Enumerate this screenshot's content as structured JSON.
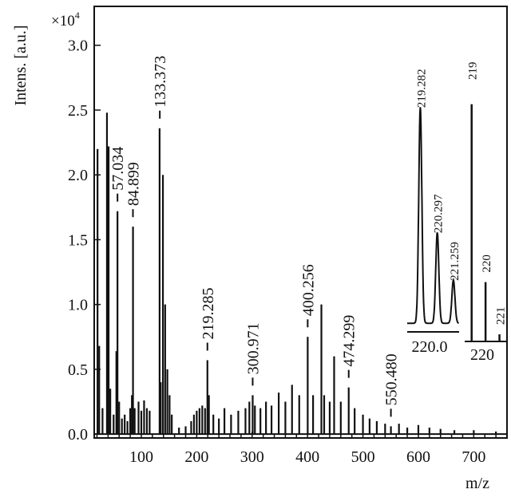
{
  "chart_data": [
    {
      "type": "line",
      "title": "",
      "xlabel": "m/z",
      "ylabel": "Intens. [a.u.]",
      "y_multiplier": "×10",
      "y_multiplier_exp": "4",
      "xlim": [
        15,
        760
      ],
      "ylim": [
        -0.03,
        3.3
      ],
      "x_ticks": [
        100,
        200,
        300,
        400,
        500,
        600,
        700
      ],
      "y_ticks": [
        0.0,
        0.5,
        1.0,
        1.5,
        2.0,
        2.5,
        3.0
      ],
      "y_tick_labels": [
        "0.0",
        "0.5",
        "1.0",
        "1.5",
        "2.0",
        "2.5",
        "3.0"
      ],
      "grid": false,
      "peaks": [
        {
          "x": 21,
          "y": 2.2
        },
        {
          "x": 24,
          "y": 0.68
        },
        {
          "x": 30,
          "y": 0.2
        },
        {
          "x": 38,
          "y": 2.48
        },
        {
          "x": 41,
          "y": 2.22
        },
        {
          "x": 44,
          "y": 0.35
        },
        {
          "x": 50,
          "y": 0.15
        },
        {
          "x": 55,
          "y": 0.64
        },
        {
          "x": 57,
          "y": 1.72
        },
        {
          "x": 60,
          "y": 0.25
        },
        {
          "x": 65,
          "y": 0.12
        },
        {
          "x": 70,
          "y": 0.15
        },
        {
          "x": 75,
          "y": 0.1
        },
        {
          "x": 80,
          "y": 0.2
        },
        {
          "x": 83,
          "y": 0.3
        },
        {
          "x": 85,
          "y": 1.6
        },
        {
          "x": 88,
          "y": 0.2
        },
        {
          "x": 95,
          "y": 0.25
        },
        {
          "x": 100,
          "y": 0.18
        },
        {
          "x": 105,
          "y": 0.26
        },
        {
          "x": 110,
          "y": 0.2
        },
        {
          "x": 115,
          "y": 0.18
        },
        {
          "x": 133,
          "y": 2.36
        },
        {
          "x": 135,
          "y": 0.4
        },
        {
          "x": 139,
          "y": 2.0
        },
        {
          "x": 143,
          "y": 1.0
        },
        {
          "x": 147,
          "y": 0.5
        },
        {
          "x": 151,
          "y": 0.3
        },
        {
          "x": 155,
          "y": 0.15
        },
        {
          "x": 168,
          "y": 0.05
        },
        {
          "x": 180,
          "y": 0.06
        },
        {
          "x": 190,
          "y": 0.1
        },
        {
          "x": 195,
          "y": 0.15
        },
        {
          "x": 200,
          "y": 0.18
        },
        {
          "x": 205,
          "y": 0.2
        },
        {
          "x": 210,
          "y": 0.22
        },
        {
          "x": 215,
          "y": 0.2
        },
        {
          "x": 219.3,
          "y": 0.57
        },
        {
          "x": 222,
          "y": 0.3
        },
        {
          "x": 230,
          "y": 0.15
        },
        {
          "x": 240,
          "y": 0.12
        },
        {
          "x": 250,
          "y": 0.2
        },
        {
          "x": 262,
          "y": 0.15
        },
        {
          "x": 275,
          "y": 0.18
        },
        {
          "x": 288,
          "y": 0.2
        },
        {
          "x": 295,
          "y": 0.25
        },
        {
          "x": 301,
          "y": 0.3
        },
        {
          "x": 305,
          "y": 0.22
        },
        {
          "x": 315,
          "y": 0.2
        },
        {
          "x": 325,
          "y": 0.25
        },
        {
          "x": 335,
          "y": 0.22
        },
        {
          "x": 348,
          "y": 0.32
        },
        {
          "x": 360,
          "y": 0.25
        },
        {
          "x": 372,
          "y": 0.38
        },
        {
          "x": 385,
          "y": 0.3
        },
        {
          "x": 400.3,
          "y": 0.75
        },
        {
          "x": 410,
          "y": 0.3
        },
        {
          "x": 425,
          "y": 1.0
        },
        {
          "x": 430,
          "y": 0.3
        },
        {
          "x": 440,
          "y": 0.25
        },
        {
          "x": 448,
          "y": 0.6
        },
        {
          "x": 460,
          "y": 0.25
        },
        {
          "x": 474.3,
          "y": 0.36
        },
        {
          "x": 485,
          "y": 0.2
        },
        {
          "x": 500,
          "y": 0.15
        },
        {
          "x": 512,
          "y": 0.12
        },
        {
          "x": 525,
          "y": 0.1
        },
        {
          "x": 540,
          "y": 0.08
        },
        {
          "x": 550.5,
          "y": 0.06
        },
        {
          "x": 565,
          "y": 0.08
        },
        {
          "x": 580,
          "y": 0.05
        },
        {
          "x": 600,
          "y": 0.07
        },
        {
          "x": 620,
          "y": 0.05
        },
        {
          "x": 640,
          "y": 0.04
        },
        {
          "x": 665,
          "y": 0.03
        },
        {
          "x": 700,
          "y": 0.03
        },
        {
          "x": 740,
          "y": 0.02
        }
      ],
      "annotations": [
        {
          "label": "57.034",
          "x": 57.034
        },
        {
          "label": "84.899",
          "x": 84.899
        },
        {
          "label": "133.373",
          "x": 133.373
        },
        {
          "label": "219.285",
          "x": 219.285
        },
        {
          "label": "300.971",
          "x": 300.971
        },
        {
          "label": "400.256",
          "x": 400.256
        },
        {
          "label": "474.299",
          "x": 474.299
        },
        {
          "label": "550.480",
          "x": 550.48
        }
      ]
    },
    {
      "type": "line",
      "description_role": "inset-measured-isotope",
      "xlim": [
        218.5,
        221.6
      ],
      "x_tick_label": "220.0",
      "peaks": [
        {
          "x": 219.282,
          "y": 1.0,
          "label": "219.282"
        },
        {
          "x": 220.297,
          "y": 0.42,
          "label": "220.297"
        },
        {
          "x": 221.259,
          "y": 0.2,
          "label": "221.259"
        }
      ]
    },
    {
      "type": "bar",
      "description_role": "inset-simulated-isotope",
      "xlim": [
        218.5,
        221.6
      ],
      "x_tick_label": "220",
      "peaks": [
        {
          "x": 219,
          "y": 1.0,
          "label": "219"
        },
        {
          "x": 220,
          "y": 0.25,
          "label": "220"
        },
        {
          "x": 221,
          "y": 0.03,
          "label": "221"
        }
      ]
    }
  ]
}
